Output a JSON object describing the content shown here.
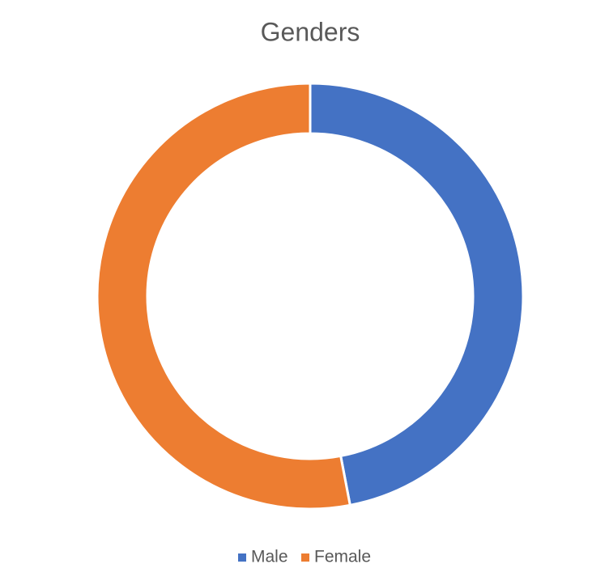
{
  "chart_data": {
    "type": "pie",
    "title": "Genders",
    "donut": true,
    "categories": [
      "Male",
      "Female"
    ],
    "values": [
      47,
      53
    ],
    "colors": [
      "#4472c4",
      "#ed7d31"
    ],
    "legend": "bottom"
  }
}
